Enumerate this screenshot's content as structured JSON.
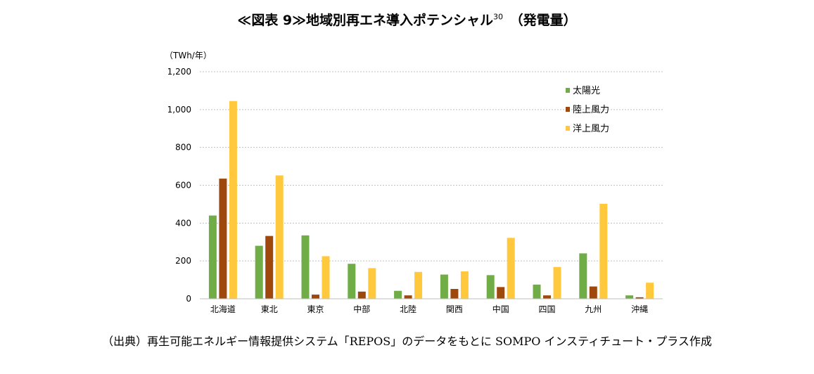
{
  "title": {
    "main": "≪図表 9≫地域別再エネ導入ポテンシャル",
    "superscript": "30",
    "suffix": "（発電量）"
  },
  "source": "（出典）再生可能エネルギー情報提供システム「REPOS」のデータをもとに SOMPO インスティチュート・プラス作成",
  "chart_data": {
    "type": "bar",
    "unit_label": "（TWh/年）",
    "categories": [
      "北海道",
      "東北",
      "東京",
      "中部",
      "北陸",
      "関西",
      "中国",
      "四国",
      "九州",
      "沖縄"
    ],
    "ylim": [
      0,
      1200
    ],
    "yticks": [
      0,
      200,
      400,
      600,
      800,
      1000,
      1200
    ],
    "ytick_labels": [
      "0",
      "200",
      "400",
      "600",
      "800",
      "1,000",
      "1,200"
    ],
    "grid": true,
    "legend_position": "top-right",
    "series": [
      {
        "name": "太陽光",
        "color": "#70AD47",
        "values": [
          440,
          280,
          335,
          185,
          42,
          128,
          125,
          75,
          240,
          18
        ]
      },
      {
        "name": "陸上風力",
        "color": "#9E480E",
        "values": [
          635,
          332,
          22,
          38,
          18,
          52,
          62,
          18,
          65,
          8
        ]
      },
      {
        "name": "洋上風力",
        "color": "#FFC83D",
        "values": [
          1045,
          652,
          225,
          162,
          142,
          145,
          322,
          168,
          502,
          85
        ]
      }
    ]
  }
}
